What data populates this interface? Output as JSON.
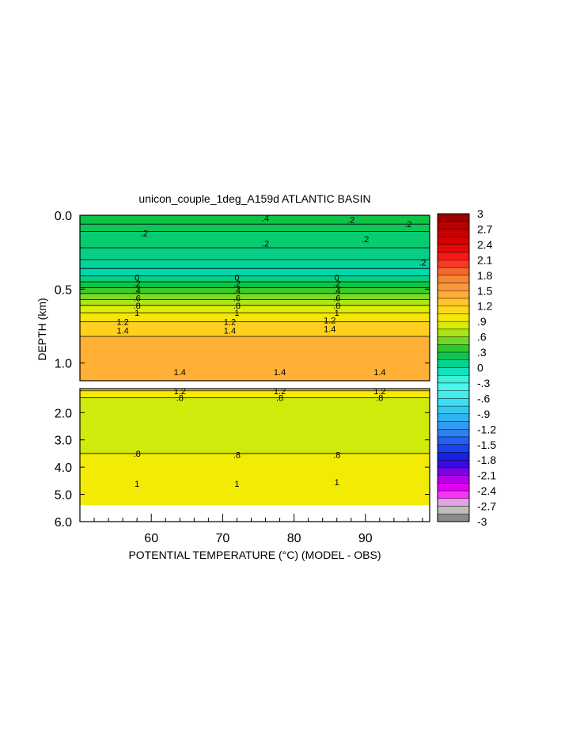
{
  "chart_data": {
    "type": "heatmap",
    "title": "unicon_couple_1deg_A159d ATLANTIC BASIN",
    "xlabel": "POTENTIAL TEMPERATURE (°C) (MODEL - OBS)",
    "ylabel": "DEPTH (km)",
    "xlim": [
      50,
      99
    ],
    "x_ticks": [
      "60",
      "70",
      "80",
      "90"
    ],
    "upper_panel": {
      "ylim": [
        0,
        1.12
      ],
      "y_ticks": [
        "0.0",
        "0.5",
        "1.0"
      ],
      "bands": [
        {
          "top": 0.0,
          "bottom": 0.06,
          "value": 0.25
        },
        {
          "top": 0.06,
          "bottom": 0.11,
          "value": 0.2
        },
        {
          "top": 0.11,
          "bottom": 0.22,
          "value": 0.15
        },
        {
          "top": 0.22,
          "bottom": 0.3,
          "value": 0.1
        },
        {
          "top": 0.3,
          "bottom": 0.36,
          "value": 0.05
        },
        {
          "top": 0.36,
          "bottom": 0.41,
          "value": 0.0
        },
        {
          "top": 0.41,
          "bottom": 0.45,
          "value": 0.1
        },
        {
          "top": 0.45,
          "bottom": 0.49,
          "value": 0.25
        },
        {
          "top": 0.49,
          "bottom": 0.53,
          "value": 0.4
        },
        {
          "top": 0.53,
          "bottom": 0.57,
          "value": 0.55
        },
        {
          "top": 0.57,
          "bottom": 0.61,
          "value": 0.7
        },
        {
          "top": 0.61,
          "bottom": 0.66,
          "value": 0.85
        },
        {
          "top": 0.66,
          "bottom": 0.72,
          "value": 1.0
        },
        {
          "top": 0.72,
          "bottom": 0.82,
          "value": 1.2
        },
        {
          "top": 0.82,
          "bottom": 1.12,
          "value": 1.4
        }
      ],
      "contour_labels": [
        {
          "text": ".4",
          "x": 76,
          "y": 0.02
        },
        {
          "text": ".2",
          "x": 88,
          "y": 0.03
        },
        {
          "text": ".2",
          "x": 96,
          "y": 0.06
        },
        {
          "text": ".2",
          "x": 59,
          "y": 0.12
        },
        {
          "text": ".2",
          "x": 76,
          "y": 0.19
        },
        {
          "text": ".2",
          "x": 90,
          "y": 0.16
        },
        {
          "text": ".2",
          "x": 98,
          "y": 0.32
        },
        {
          "text": "0",
          "x": 58,
          "y": 0.42
        },
        {
          "text": "0",
          "x": 72,
          "y": 0.42
        },
        {
          "text": "0",
          "x": 86,
          "y": 0.42
        },
        {
          "text": ".2",
          "x": 58,
          "y": 0.46
        },
        {
          "text": ".2",
          "x": 72,
          "y": 0.46
        },
        {
          "text": ".2",
          "x": 86,
          "y": 0.46
        },
        {
          "text": ".4",
          "x": 58,
          "y": 0.51
        },
        {
          "text": ".4",
          "x": 72,
          "y": 0.51
        },
        {
          "text": ".4",
          "x": 86,
          "y": 0.51
        },
        {
          "text": ".6",
          "x": 58,
          "y": 0.56
        },
        {
          "text": ".6",
          "x": 72,
          "y": 0.56
        },
        {
          "text": ".6",
          "x": 86,
          "y": 0.56
        },
        {
          "text": ".8",
          "x": 58,
          "y": 0.61
        },
        {
          "text": ".8",
          "x": 72,
          "y": 0.61
        },
        {
          "text": ".8",
          "x": 86,
          "y": 0.61
        },
        {
          "text": "1",
          "x": 58,
          "y": 0.66
        },
        {
          "text": "1",
          "x": 72,
          "y": 0.66
        },
        {
          "text": "1",
          "x": 86,
          "y": 0.66
        },
        {
          "text": "1.2",
          "x": 56,
          "y": 0.72
        },
        {
          "text": "1.2",
          "x": 71,
          "y": 0.72
        },
        {
          "text": "1.2",
          "x": 85,
          "y": 0.71
        },
        {
          "text": "1.4",
          "x": 56,
          "y": 0.78
        },
        {
          "text": "1.4",
          "x": 71,
          "y": 0.78
        },
        {
          "text": "1.4",
          "x": 85,
          "y": 0.77
        },
        {
          "text": "1.4",
          "x": 64,
          "y": 1.06
        },
        {
          "text": "1.4",
          "x": 78,
          "y": 1.06
        },
        {
          "text": "1.4",
          "x": 92,
          "y": 1.06
        }
      ]
    },
    "lower_panel": {
      "ylim": [
        1.12,
        6.0
      ],
      "y_ticks": [
        "2.0",
        "3.0",
        "4.0",
        "5.0",
        "6.0"
      ],
      "bands": [
        {
          "top": 1.12,
          "bottom": 1.2,
          "value": 1.2
        },
        {
          "top": 1.2,
          "bottom": 1.45,
          "value": 0.95
        },
        {
          "top": 1.45,
          "bottom": 3.5,
          "value": 0.8
        },
        {
          "top": 3.5,
          "bottom": 5.4,
          "value": 0.95
        },
        {
          "top": 5.4,
          "bottom": 6.0,
          "value": null
        }
      ],
      "contour_labels": [
        {
          "text": "1.2",
          "x": 64,
          "y": 1.2
        },
        {
          "text": "1.2",
          "x": 78,
          "y": 1.2
        },
        {
          "text": "1.2",
          "x": 92,
          "y": 1.2
        },
        {
          "text": ".8",
          "x": 64,
          "y": 1.45
        },
        {
          "text": ".8",
          "x": 78,
          "y": 1.45
        },
        {
          "text": ".8",
          "x": 92,
          "y": 1.45
        },
        {
          "text": ".8",
          "x": 58,
          "y": 3.5
        },
        {
          "text": ".8",
          "x": 72,
          "y": 3.55
        },
        {
          "text": ".8",
          "x": 86,
          "y": 3.55
        },
        {
          "text": "1",
          "x": 58,
          "y": 4.6
        },
        {
          "text": "1",
          "x": 72,
          "y": 4.6
        },
        {
          "text": "1",
          "x": 86,
          "y": 4.55
        }
      ]
    },
    "colorbar": {
      "min": -3,
      "max": 3,
      "labels": [
        "3",
        "2.7",
        "2.4",
        "2.1",
        "1.8",
        "1.5",
        "1.2",
        ".9",
        ".6",
        ".3",
        "0",
        "-.3",
        "-.6",
        "-.9",
        "-1.2",
        "-1.5",
        "-1.8",
        "-2.1",
        "-2.4",
        "-2.7",
        "-3"
      ],
      "label_values": [
        3,
        2.7,
        2.4,
        2.1,
        1.8,
        1.5,
        1.2,
        0.9,
        0.6,
        0.3,
        0,
        -0.3,
        -0.6,
        -0.9,
        -1.2,
        -1.5,
        -1.8,
        -2.1,
        -2.4,
        -2.7,
        -3
      ]
    },
    "grid": false
  }
}
